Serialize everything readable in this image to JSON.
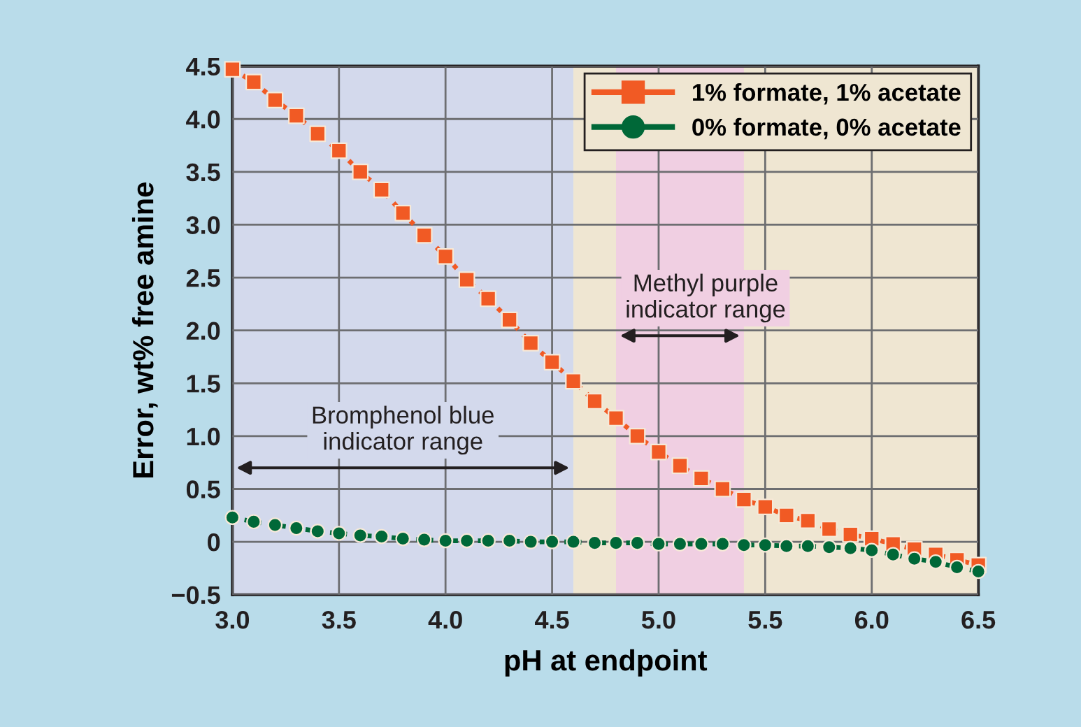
{
  "chart_data": {
    "type": "line",
    "xlabel": "pH at endpoint",
    "ylabel": "Error, wt% free amine",
    "x": [
      3.0,
      3.1,
      3.2,
      3.3,
      3.4,
      3.5,
      3.6,
      3.7,
      3.8,
      3.9,
      4.0,
      4.1,
      4.2,
      4.3,
      4.4,
      4.5,
      4.6,
      4.7,
      4.8,
      4.9,
      5.0,
      5.1,
      5.2,
      5.3,
      5.4,
      5.5,
      5.6,
      5.7,
      5.8,
      5.9,
      6.0,
      6.1,
      6.2,
      6.3,
      6.4,
      6.5
    ],
    "series": [
      {
        "name": "1% formate, 1% acetate",
        "color": "#f15a24",
        "marker": "square",
        "values": [
          4.47,
          4.35,
          4.18,
          4.03,
          3.86,
          3.7,
          3.5,
          3.33,
          3.11,
          2.9,
          2.7,
          2.48,
          2.3,
          2.1,
          1.88,
          1.7,
          1.52,
          1.33,
          1.17,
          1.0,
          0.85,
          0.72,
          0.6,
          0.5,
          0.4,
          0.33,
          0.25,
          0.2,
          0.12,
          0.07,
          0.03,
          -0.02,
          -0.07,
          -0.12,
          -0.17,
          -0.22
        ]
      },
      {
        "name": "0% formate, 0% acetate",
        "color": "#006838",
        "marker": "circle",
        "values": [
          0.23,
          0.19,
          0.16,
          0.13,
          0.1,
          0.08,
          0.06,
          0.05,
          0.03,
          0.02,
          0.01,
          0.01,
          0.01,
          0.01,
          0.0,
          0.0,
          0.0,
          -0.01,
          -0.01,
          -0.01,
          -0.02,
          -0.02,
          -0.02,
          -0.02,
          -0.03,
          -0.03,
          -0.04,
          -0.04,
          -0.05,
          -0.06,
          -0.08,
          -0.12,
          -0.16,
          -0.19,
          -0.24,
          -0.28
        ]
      }
    ],
    "line_style": "dotted",
    "bands": [
      {
        "axis": "x",
        "from": 3.0,
        "to": 4.6,
        "label": "Bromphenol blue\nindicator range",
        "color": "#d3d9ec"
      },
      {
        "axis": "x",
        "from": 4.6,
        "to": 6.5,
        "label": null,
        "color": "#efe6d2"
      },
      {
        "axis": "x",
        "from": 4.8,
        "to": 5.4,
        "label": "Methyl purple\nindicator range",
        "color": "#f0cfe2"
      }
    ],
    "xlim": [
      3.0,
      6.5
    ],
    "xticks": [
      {
        "value": 3.0,
        "label": "3.0"
      },
      {
        "value": 3.5,
        "label": "3.5"
      },
      {
        "value": 4.0,
        "label": "4.0"
      },
      {
        "value": 4.5,
        "label": "4.5"
      },
      {
        "value": 5.0,
        "label": "5.0"
      },
      {
        "value": 5.5,
        "label": "5.5"
      },
      {
        "value": 6.0,
        "label": "6.0"
      },
      {
        "value": 6.5,
        "label": "6.5"
      }
    ],
    "ylim": [
      -0.5,
      4.5
    ],
    "yticks": [
      {
        "value": -0.5,
        "label": "−0.5"
      },
      0,
      0.5,
      {
        "value": 1.0,
        "label": "1.0"
      },
      1.5,
      {
        "value": 2.0,
        "label": "2.0"
      },
      2.5,
      {
        "value": 3.0,
        "label": "3.0"
      },
      3.5,
      {
        "value": 4.0,
        "label": "4.0"
      },
      4.5
    ],
    "grid": true,
    "legend": "top right"
  }
}
